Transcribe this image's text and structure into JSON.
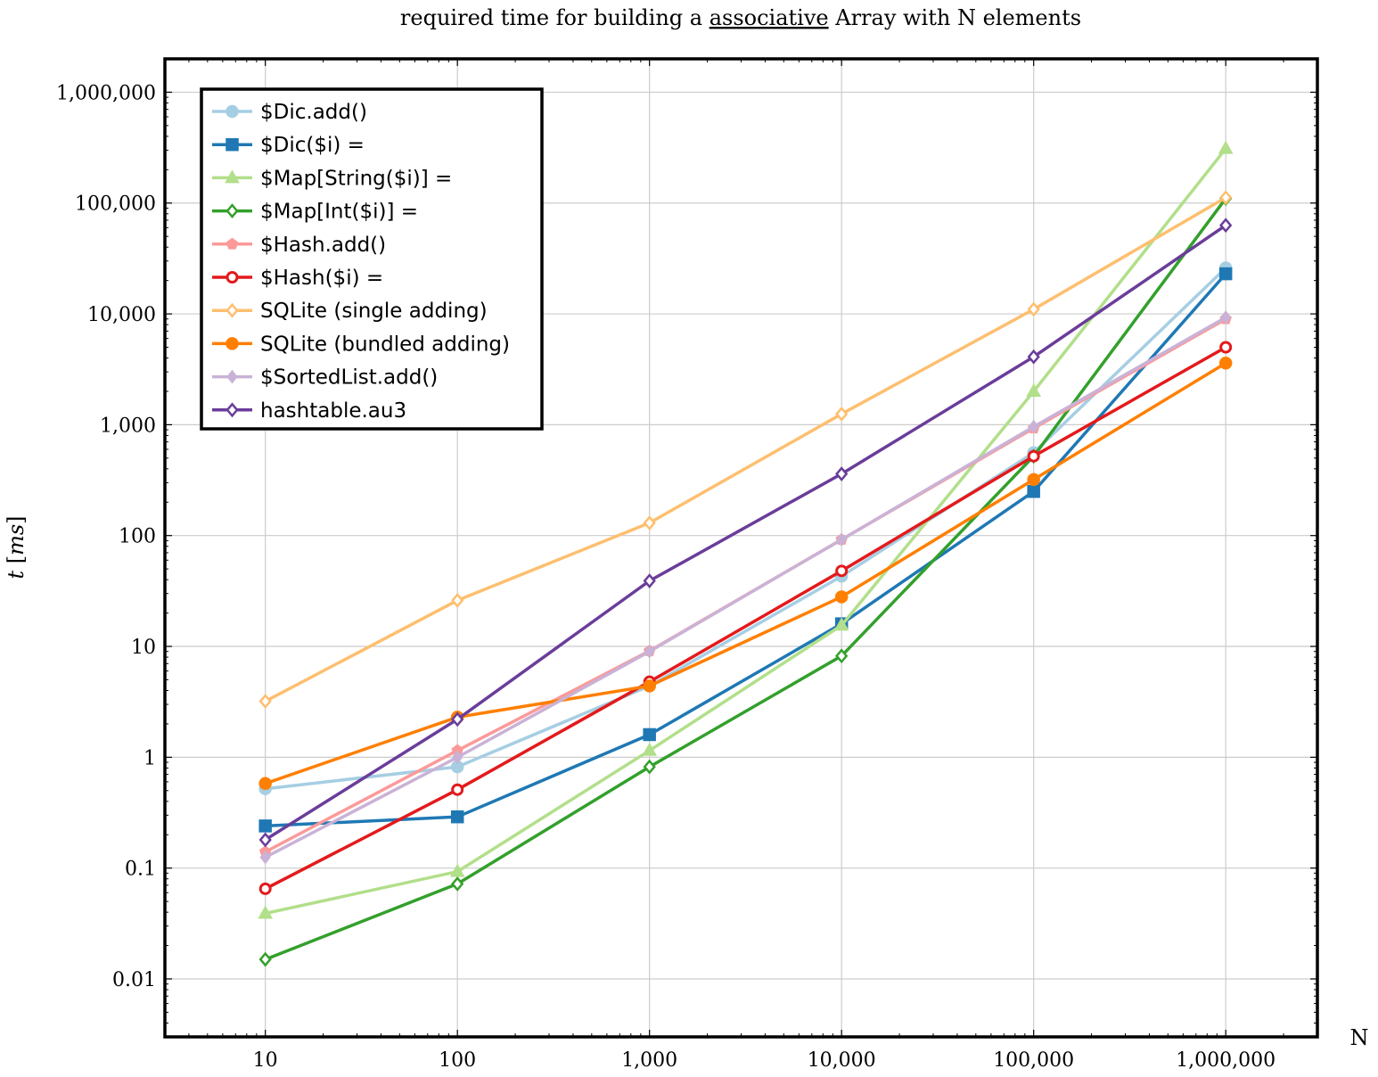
{
  "chart_data": {
    "type": "line",
    "title_pre": "required time for building a ",
    "title_underlined": "associative",
    "title_post": " Array with N elements",
    "xlabel": "N",
    "ylabel": "t [ms]",
    "x_scale": "log",
    "y_scale": "log",
    "xlim": [
      3,
      3000000
    ],
    "ylim": [
      0.003,
      2000000
    ],
    "grid": true,
    "legend_position": "top-left",
    "x_ticks": [
      {
        "value": 10,
        "label": "10"
      },
      {
        "value": 100,
        "label": "100"
      },
      {
        "value": 1000,
        "label": "1,000"
      },
      {
        "value": 10000,
        "label": "10,000"
      },
      {
        "value": 100000,
        "label": "100,000"
      },
      {
        "value": 1000000,
        "label": "1,000,000"
      }
    ],
    "y_ticks": [
      {
        "value": 0.01,
        "label": "0.01"
      },
      {
        "value": 0.1,
        "label": "0.1"
      },
      {
        "value": 1,
        "label": "1"
      },
      {
        "value": 10,
        "label": "10"
      },
      {
        "value": 100,
        "label": "100"
      },
      {
        "value": 1000,
        "label": "1,000"
      },
      {
        "value": 10000,
        "label": "10,000"
      },
      {
        "value": 100000,
        "label": "100,000"
      },
      {
        "value": 1000000,
        "label": "1,000,000"
      }
    ],
    "x": [
      10,
      100,
      1000,
      10000,
      100000,
      1000000
    ],
    "series": [
      {
        "name": "$Dic.add()",
        "color": "#a6cee3",
        "marker": "circle",
        "values": [
          0.52,
          0.82,
          4.4,
          43,
          560,
          26000
        ]
      },
      {
        "name": "$Dic($i) =",
        "color": "#1f78b4",
        "marker": "square",
        "values": [
          0.24,
          0.29,
          1.6,
          16,
          250,
          23000
        ]
      },
      {
        "name": "$Map[String($i)] =",
        "color": "#b2df8a",
        "marker": "triangle",
        "values": [
          0.039,
          0.093,
          1.15,
          15.5,
          2000,
          310000
        ]
      },
      {
        "name": "$Map[Int($i)] =",
        "color": "#33a02c",
        "marker": "diamond",
        "values": [
          0.015,
          0.072,
          0.82,
          8.2,
          520,
          110000
        ]
      },
      {
        "name": "$Hash.add()",
        "color": "#fb9a99",
        "marker": "pentagon",
        "values": [
          0.14,
          1.15,
          9.1,
          92,
          930,
          9000
        ]
      },
      {
        "name": "$Hash($i) =",
        "color": "#e31a1c",
        "marker": "circle-open",
        "values": [
          0.065,
          0.51,
          4.8,
          48,
          520,
          5000
        ]
      },
      {
        "name": "SQLite (single adding)",
        "color": "#fdbf6f",
        "marker": "diamond",
        "values": [
          3.2,
          26,
          130,
          1250,
          11000,
          112000
        ]
      },
      {
        "name": "SQLite (bundled adding)",
        "color": "#ff7f00",
        "marker": "circle",
        "values": [
          0.58,
          2.3,
          4.4,
          28,
          320,
          3600
        ]
      },
      {
        "name": "$SortedList.add()",
        "color": "#cab2d6",
        "marker": "diamond-filled",
        "values": [
          0.125,
          1.0,
          9.0,
          92,
          960,
          9300
        ]
      },
      {
        "name": "hashtable.au3",
        "color": "#6a3d9a",
        "marker": "diamond",
        "values": [
          0.18,
          2.2,
          39,
          360,
          4100,
          63000
        ]
      }
    ]
  }
}
